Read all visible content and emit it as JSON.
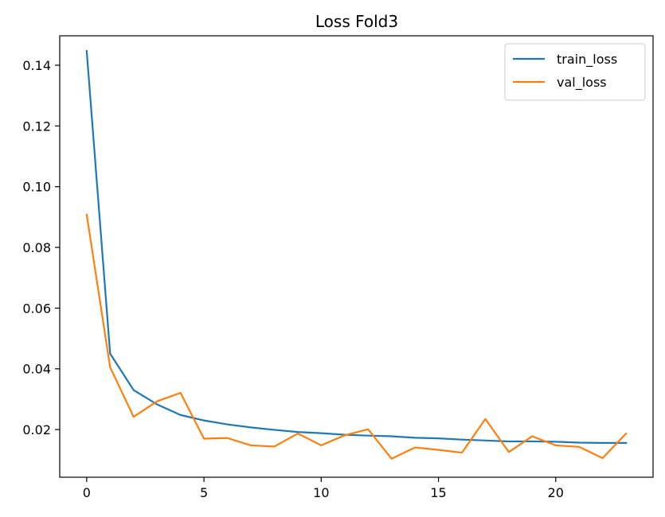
{
  "chart_data": {
    "type": "line",
    "title": "Loss Fold3",
    "xlabel": "",
    "ylabel": "",
    "xlim": [
      -1.15,
      24.15
    ],
    "ylim": [
      0.0043,
      0.1497
    ],
    "xticks": [
      0,
      5,
      10,
      15,
      20
    ],
    "yticks": [
      0.02,
      0.04,
      0.06,
      0.08,
      0.1,
      0.12,
      0.14
    ],
    "ytick_labels": [
      "0.02",
      "0.04",
      "0.06",
      "0.08",
      "0.10",
      "0.12",
      "0.14"
    ],
    "grid": false,
    "legend_position": "upper-right",
    "x": [
      0,
      1,
      2,
      3,
      4,
      5,
      6,
      7,
      8,
      9,
      10,
      11,
      12,
      13,
      14,
      15,
      16,
      17,
      18,
      19,
      20,
      21,
      22,
      23
    ],
    "series": [
      {
        "name": "train_loss",
        "color": "#1f77b4",
        "values": [
          0.1447,
          0.045,
          0.033,
          0.0283,
          0.0248,
          0.023,
          0.0217,
          0.0207,
          0.0199,
          0.0192,
          0.0188,
          0.0183,
          0.018,
          0.0178,
          0.0173,
          0.0171,
          0.0167,
          0.0164,
          0.0161,
          0.0161,
          0.016,
          0.0157,
          0.0156,
          0.0156
        ]
      },
      {
        "name": "val_loss",
        "color": "#ff7f0e",
        "values": [
          0.0908,
          0.0405,
          0.0242,
          0.0293,
          0.0321,
          0.017,
          0.0172,
          0.0148,
          0.0144,
          0.0187,
          0.0148,
          0.0181,
          0.0201,
          0.0104,
          0.0141,
          0.0133,
          0.0124,
          0.0235,
          0.0126,
          0.0178,
          0.0148,
          0.0143,
          0.0106,
          0.0187
        ]
      }
    ]
  }
}
